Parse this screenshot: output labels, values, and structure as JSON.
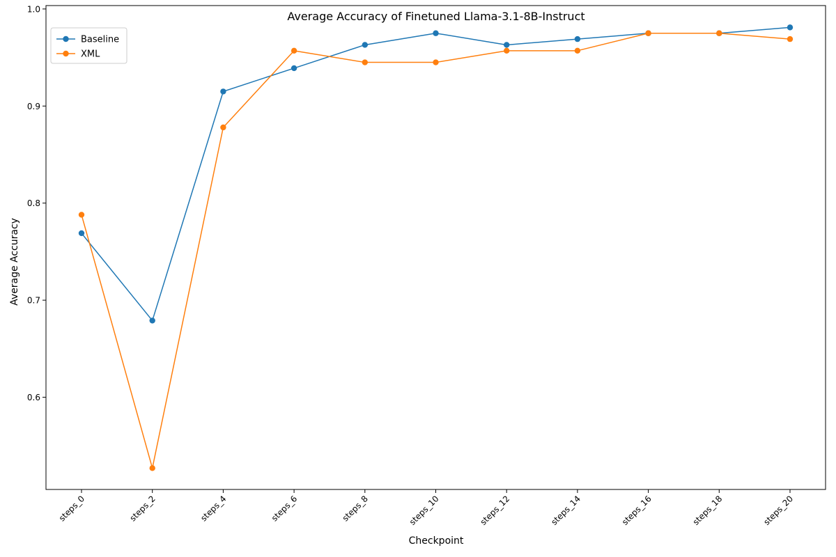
{
  "chart_data": {
    "type": "line",
    "title": "Average Accuracy of Finetuned Llama-3.1-8B-Instruct",
    "xlabel": "Checkpoint",
    "ylabel": "Average Accuracy",
    "categories": [
      "steps_0",
      "steps_2",
      "steps_4",
      "steps_6",
      "steps_8",
      "steps_10",
      "steps_12",
      "steps_14",
      "steps_16",
      "steps_18",
      "steps_20"
    ],
    "ylim": [
      0.505,
      1.0035
    ],
    "yticks": [
      0.6,
      0.7,
      0.8,
      0.9,
      1.0
    ],
    "ytick_labels": [
      "0.6",
      "0.7",
      "0.8",
      "0.9",
      "1.0"
    ],
    "xtick_rotation_deg": 45,
    "grid": false,
    "legend_position": "upper left",
    "markers": "circle",
    "series": [
      {
        "name": "Baseline",
        "color": "#1f77b4",
        "values": [
          0.769,
          0.679,
          0.915,
          0.939,
          0.963,
          0.975,
          0.963,
          0.969,
          0.975,
          0.975,
          0.981
        ]
      },
      {
        "name": "XML",
        "color": "#ff7f0e",
        "values": [
          0.788,
          0.527,
          0.878,
          0.957,
          0.945,
          0.945,
          0.957,
          0.957,
          0.975,
          0.975,
          0.969
        ]
      }
    ]
  }
}
